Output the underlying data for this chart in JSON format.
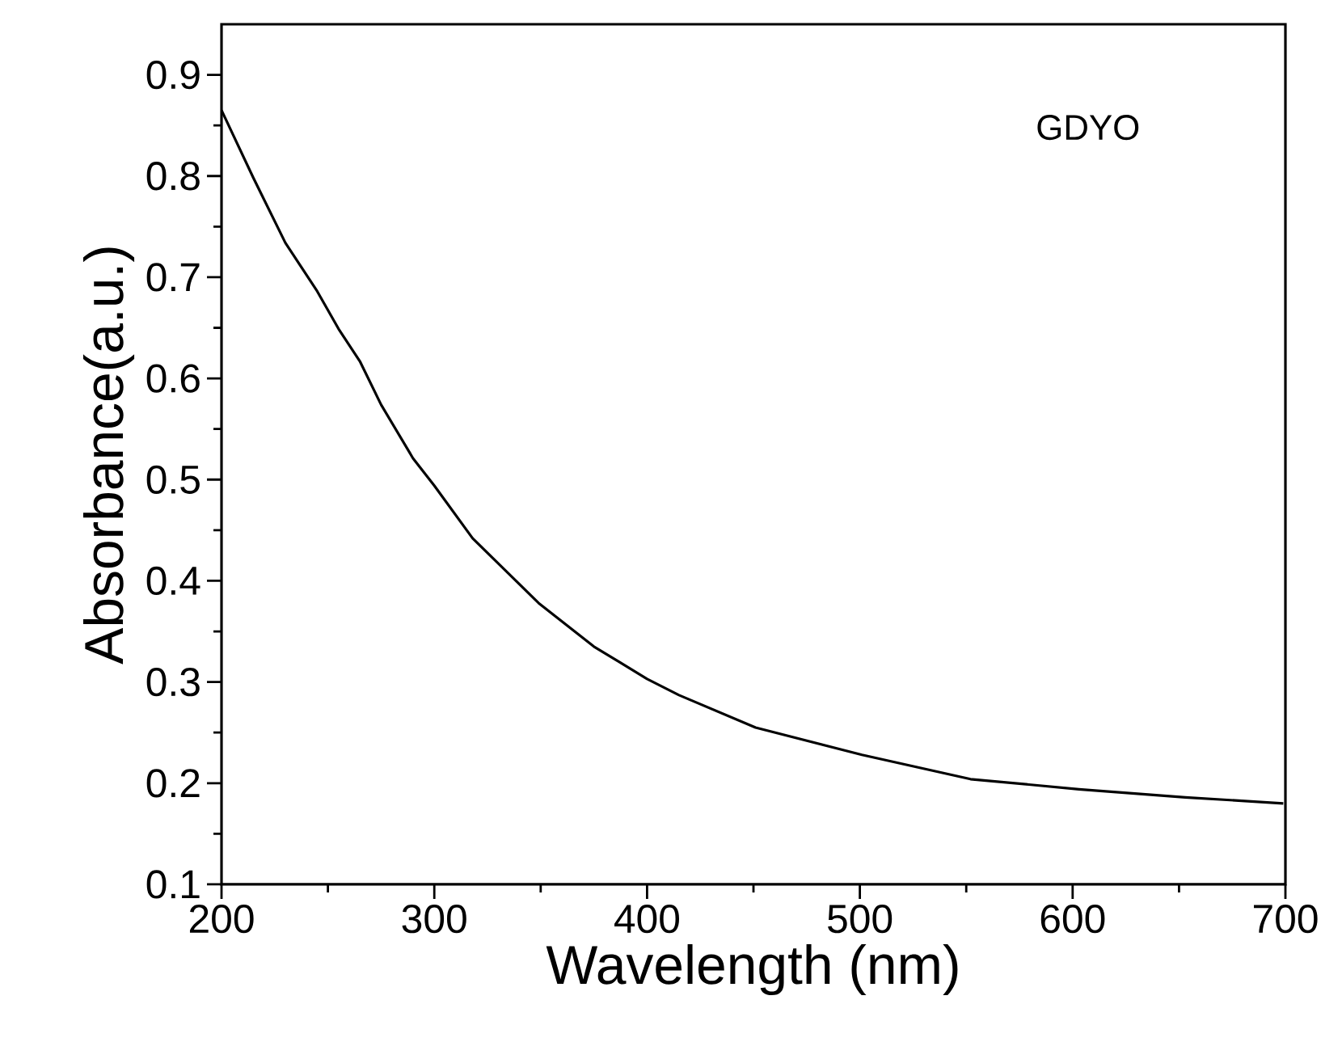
{
  "chart_data": {
    "type": "line",
    "xlabel": "Wavelength (nm)",
    "ylabel": "Absorbance(a.u.)",
    "annotations": [
      "GDYO"
    ],
    "series": [
      {
        "color": "#000000",
        "x": [
          200,
          215,
          230,
          245,
          255,
          265,
          275,
          290,
          300,
          318,
          349,
          375,
          400,
          415,
          451,
          501,
          552,
          603,
          653,
          699
        ],
        "values": [
          0.865,
          0.798,
          0.734,
          0.686,
          0.649,
          0.617,
          0.574,
          0.521,
          0.494,
          0.442,
          0.378,
          0.335,
          0.303,
          0.287,
          0.255,
          0.228,
          0.204,
          0.194,
          0.186,
          0.18
        ]
      }
    ],
    "xlim": [
      200,
      700
    ],
    "ylim": [
      0.1,
      0.95
    ],
    "xticks": [
      200,
      300,
      400,
      500,
      600,
      700
    ],
    "yticks": [
      0.1,
      0.2,
      0.3,
      0.4,
      0.5,
      0.6,
      0.7,
      0.8,
      0.9
    ],
    "grid": false,
    "marker": "none",
    "line_style": "solid"
  }
}
